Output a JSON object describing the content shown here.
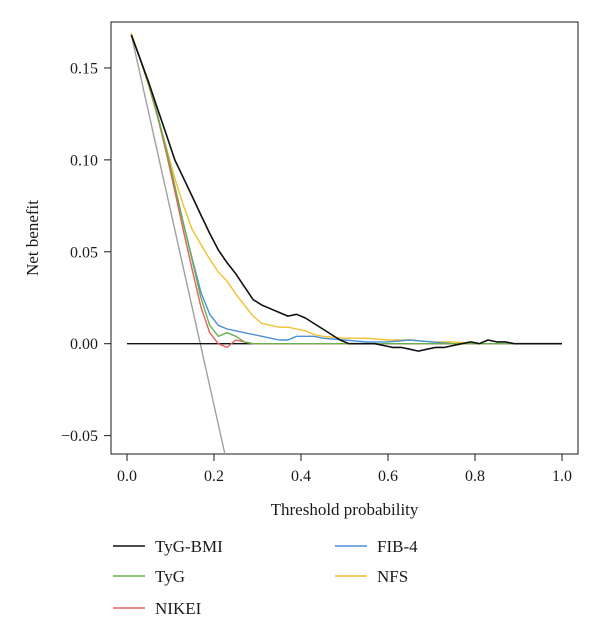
{
  "chart_data": {
    "type": "line",
    "title": "",
    "xlabel": "Threshold probability",
    "ylabel": "Net benefit",
    "xlim": [
      0.0,
      1.0
    ],
    "ylim": [
      -0.06,
      0.175
    ],
    "xticks": [
      0.0,
      0.2,
      0.4,
      0.6,
      0.8,
      1.0
    ],
    "xtick_labels": [
      "0.0",
      "0.2",
      "0.4",
      "0.6",
      "0.8",
      "1.0"
    ],
    "yticks": [
      -0.05,
      0.0,
      0.05,
      0.1,
      0.15
    ],
    "ytick_labels": [
      "−0.05",
      "0.00",
      "0.05",
      "0.10",
      "0.15"
    ],
    "grid": false,
    "legend_position": "bottom",
    "series": [
      {
        "name": "TyG-BMI",
        "color": "#111111",
        "x": [
          0.01,
          0.03,
          0.05,
          0.07,
          0.09,
          0.11,
          0.13,
          0.15,
          0.17,
          0.19,
          0.21,
          0.23,
          0.25,
          0.27,
          0.29,
          0.31,
          0.33,
          0.35,
          0.37,
          0.39,
          0.41,
          0.43,
          0.45,
          0.47,
          0.49,
          0.51,
          0.53,
          0.55,
          0.57,
          0.59,
          0.61,
          0.63,
          0.65,
          0.67,
          0.69,
          0.71,
          0.73,
          0.75,
          0.77,
          0.79,
          0.81,
          0.83,
          0.85,
          0.87,
          0.89,
          0.91,
          0.93,
          0.95,
          0.97,
          0.99,
          1.0
        ],
        "y": [
          0.168,
          0.155,
          0.142,
          0.128,
          0.114,
          0.1,
          0.09,
          0.08,
          0.07,
          0.06,
          0.051,
          0.044,
          0.038,
          0.031,
          0.024,
          0.021,
          0.019,
          0.017,
          0.015,
          0.016,
          0.014,
          0.011,
          0.008,
          0.005,
          0.002,
          0.0,
          0.0,
          0.0,
          0.0,
          -0.001,
          -0.002,
          -0.002,
          -0.003,
          -0.004,
          -0.003,
          -0.002,
          -0.002,
          -0.001,
          0.0,
          0.001,
          0.0,
          0.002,
          0.001,
          0.001,
          0.0,
          0.0,
          0.0,
          0.0,
          0.0,
          0.0,
          0.0
        ]
      },
      {
        "name": "TyG",
        "color": "#6ab04c",
        "x": [
          0.01,
          0.03,
          0.05,
          0.07,
          0.09,
          0.11,
          0.13,
          0.15,
          0.17,
          0.19,
          0.21,
          0.23,
          0.25,
          0.27,
          0.29,
          0.31,
          0.35,
          0.4,
          0.45,
          0.5,
          0.6,
          0.7,
          0.8,
          0.9,
          1.0
        ],
        "y": [
          0.168,
          0.155,
          0.141,
          0.125,
          0.106,
          0.086,
          0.065,
          0.045,
          0.025,
          0.01,
          0.004,
          0.006,
          0.004,
          0.001,
          0.0,
          0.0,
          0.0,
          0.0,
          0.0,
          0.0,
          0.0,
          0.0,
          0.0,
          0.0,
          0.0
        ]
      },
      {
        "name": "NIKEI",
        "color": "#e06060",
        "x": [
          0.01,
          0.03,
          0.05,
          0.07,
          0.09,
          0.11,
          0.13,
          0.15,
          0.17,
          0.19,
          0.21,
          0.23,
          0.25,
          0.27,
          0.29,
          0.31,
          0.35,
          0.4,
          0.45,
          0.5,
          0.6,
          0.7,
          0.8,
          0.9,
          1.0
        ],
        "y": [
          0.168,
          0.155,
          0.141,
          0.124,
          0.104,
          0.083,
          0.061,
          0.04,
          0.02,
          0.006,
          0.0,
          -0.002,
          0.002,
          0.001,
          0.0,
          0.0,
          0.0,
          0.0,
          0.0,
          0.0,
          0.0,
          0.0,
          0.0,
          0.0,
          0.0
        ]
      },
      {
        "name": "FIB-4",
        "color": "#4a90d9",
        "x": [
          0.01,
          0.03,
          0.05,
          0.07,
          0.09,
          0.11,
          0.13,
          0.15,
          0.17,
          0.19,
          0.21,
          0.23,
          0.25,
          0.27,
          0.29,
          0.31,
          0.33,
          0.35,
          0.37,
          0.39,
          0.41,
          0.43,
          0.45,
          0.5,
          0.55,
          0.6,
          0.65,
          0.7,
          0.75,
          0.8,
          0.9,
          1.0
        ],
        "y": [
          0.168,
          0.155,
          0.141,
          0.124,
          0.105,
          0.085,
          0.065,
          0.046,
          0.028,
          0.016,
          0.01,
          0.008,
          0.007,
          0.006,
          0.005,
          0.004,
          0.003,
          0.002,
          0.002,
          0.004,
          0.004,
          0.004,
          0.003,
          0.002,
          0.001,
          0.001,
          0.002,
          0.001,
          0.0,
          0.0,
          0.0,
          0.0
        ]
      },
      {
        "name": "NFS",
        "color": "#f0c030",
        "x": [
          0.01,
          0.03,
          0.05,
          0.07,
          0.09,
          0.11,
          0.13,
          0.15,
          0.17,
          0.19,
          0.21,
          0.23,
          0.25,
          0.27,
          0.29,
          0.31,
          0.33,
          0.35,
          0.37,
          0.39,
          0.41,
          0.43,
          0.45,
          0.5,
          0.55,
          0.6,
          0.65,
          0.7,
          0.75,
          0.8,
          0.9,
          1.0
        ],
        "y": [
          0.169,
          0.155,
          0.14,
          0.124,
          0.107,
          0.09,
          0.075,
          0.062,
          0.054,
          0.046,
          0.039,
          0.034,
          0.027,
          0.021,
          0.015,
          0.011,
          0.01,
          0.009,
          0.009,
          0.008,
          0.007,
          0.005,
          0.004,
          0.003,
          0.003,
          0.002,
          0.002,
          0.001,
          0.001,
          0.0,
          0.0,
          0.0
        ]
      },
      {
        "color": "#a0a0a0",
        "x": [
          0.01,
          0.225
        ],
        "y": [
          0.168,
          -0.06
        ]
      },
      {
        "color": "#111111",
        "x": [
          0.0,
          1.0
        ],
        "y": [
          0.0,
          0.0
        ]
      }
    ]
  }
}
